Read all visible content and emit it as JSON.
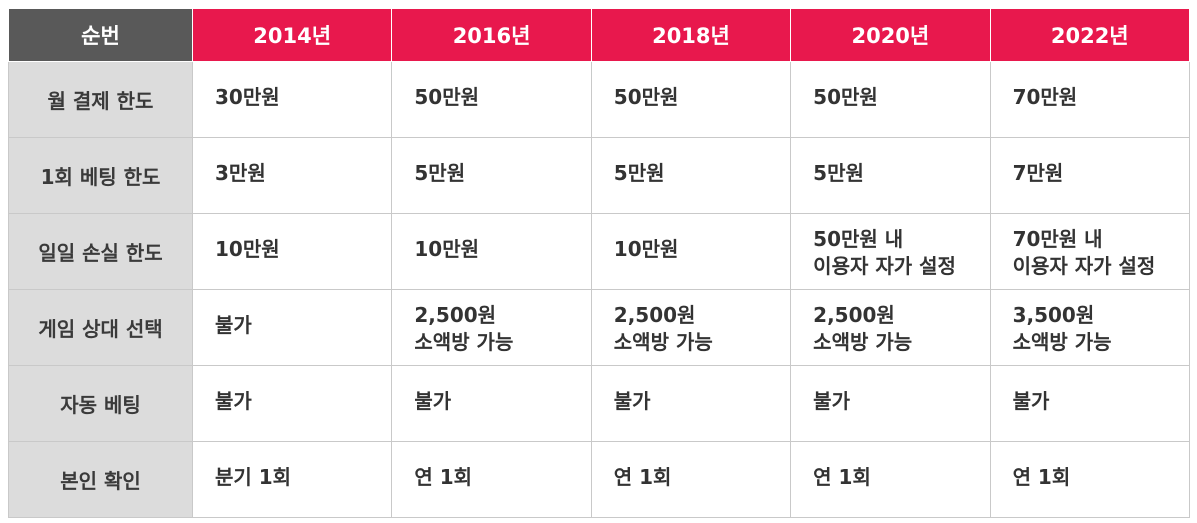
{
  "table": {
    "header": [
      "순번",
      "2014년",
      "2016년",
      "2018년",
      "2020년",
      "2022년"
    ],
    "rows": [
      {
        "label": "월 결제 한도",
        "cells": [
          "30만원",
          "50만원",
          "50만원",
          "50만원",
          "70만원"
        ]
      },
      {
        "label": "1회 베팅 한도",
        "cells": [
          "3만원",
          "5만원",
          "5만원",
          "5만원",
          "7만원"
        ]
      },
      {
        "label": "일일 손실 한도",
        "cells": [
          "10만원",
          "10만원",
          "10만원",
          "50만원 내\n이용자 자가 설정",
          "70만원 내\n이용자 자가 설정"
        ]
      },
      {
        "label": "게임 상대 선택",
        "cells": [
          "불가",
          "2,500원\n소액방 가능",
          "2,500원\n소액방 가능",
          "2,500원\n소액방 가능",
          "3,500원\n소액방 가능"
        ]
      },
      {
        "label": "자동 베팅",
        "cells": [
          "불가",
          "불가",
          "불가",
          "불가",
          "불가"
        ]
      },
      {
        "label": "본인 확인",
        "cells": [
          "분기 1회",
          "연 1회",
          "연 1회",
          "연 1회",
          "연 1회"
        ]
      }
    ]
  },
  "colors": {
    "header_accent": "#e8184d",
    "header_corner": "#595959",
    "row_label_bg": "#dcdcdc"
  }
}
